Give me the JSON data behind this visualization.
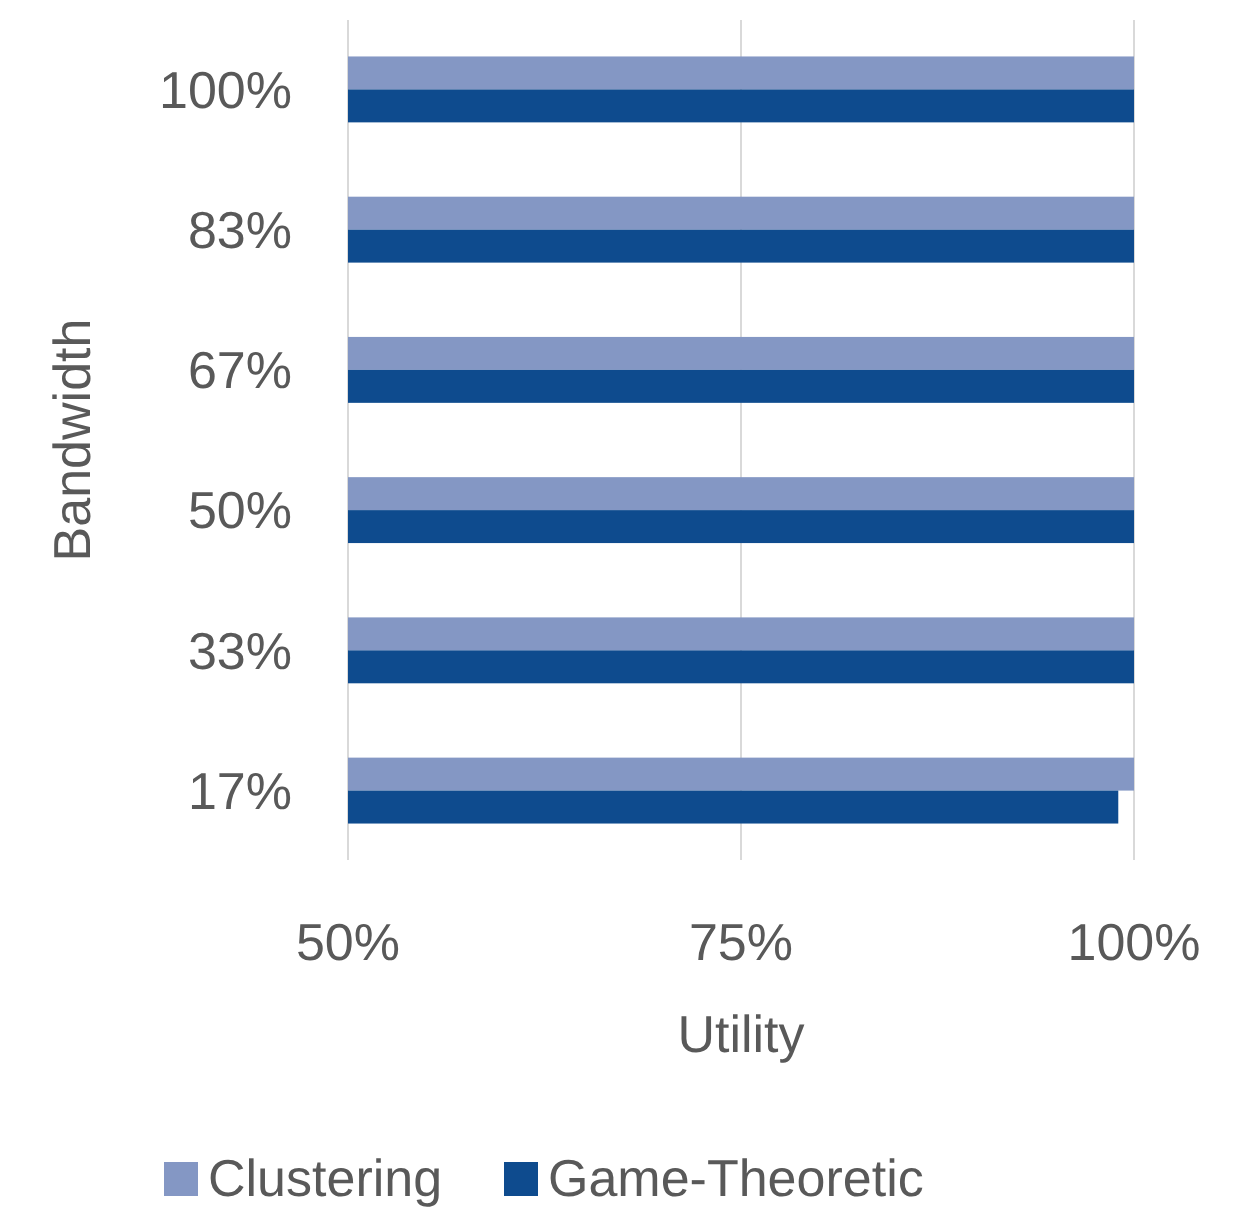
{
  "chart_data": {
    "type": "bar",
    "orientation": "horizontal",
    "xlabel": "Utility",
    "ylabel": "Bandwidth",
    "categories": [
      "100%",
      "83%",
      "67%",
      "50%",
      "33%",
      "17%"
    ],
    "series": [
      {
        "name": "Clustering",
        "color": "#8497c4",
        "values": [
          100,
          100,
          100,
          100,
          100,
          100
        ]
      },
      {
        "name": "Game-Theoretic",
        "color": "#0e4b8e",
        "values": [
          100,
          100,
          100,
          100,
          100,
          99
        ]
      }
    ],
    "xlim": [
      50,
      100
    ],
    "xticks": [
      {
        "value": 50,
        "label": "50%"
      },
      {
        "value": 75,
        "label": "75%"
      },
      {
        "value": 100,
        "label": "100%"
      }
    ],
    "grid": "x",
    "legend": "bottom"
  }
}
